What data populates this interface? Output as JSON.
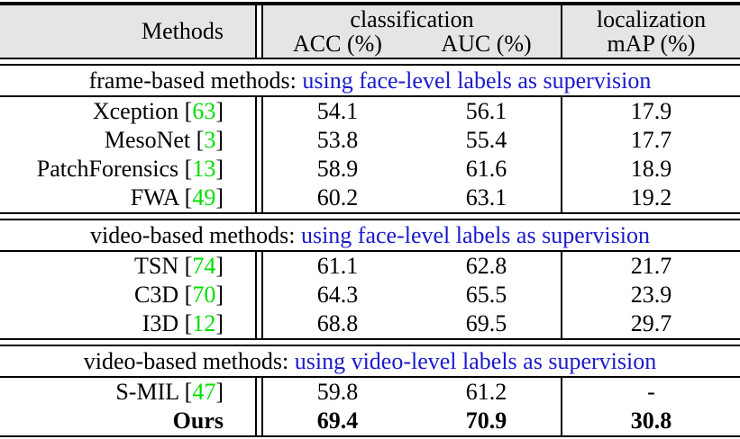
{
  "table": {
    "header": {
      "methods_label": "Methods",
      "classification_label": "classification",
      "acc_label": "ACC (%)",
      "auc_label": "AUC (%)",
      "localization_label": "localization",
      "map_label": "mAP (%)"
    },
    "cite_open": " [",
    "cite_close": "]",
    "sections": [
      {
        "title_prefix": "frame-based methods: ",
        "title_highlight": "using face-level labels as supervision",
        "rows": [
          {
            "name": "Xception",
            "cite": "63",
            "acc": "54.1",
            "auc": "56.1",
            "map": "17.9"
          },
          {
            "name": "MesoNet",
            "cite": "3",
            "acc": "53.8",
            "auc": "55.4",
            "map": "17.7"
          },
          {
            "name": "PatchForensics",
            "cite": "13",
            "acc": "58.9",
            "auc": "61.6",
            "map": "18.9"
          },
          {
            "name": "FWA",
            "cite": "49",
            "acc": "60.2",
            "auc": "63.1",
            "map": "19.2"
          }
        ]
      },
      {
        "title_prefix": "video-based methods: ",
        "title_highlight": "using face-level labels as supervision",
        "rows": [
          {
            "name": "TSN",
            "cite": "74",
            "acc": "61.1",
            "auc": "62.8",
            "map": "21.7"
          },
          {
            "name": "C3D",
            "cite": "70",
            "acc": "64.3",
            "auc": "65.5",
            "map": "23.9"
          },
          {
            "name": "I3D",
            "cite": "12",
            "acc": "68.8",
            "auc": "69.5",
            "map": "29.7"
          }
        ]
      },
      {
        "title_prefix": "video-based methods: ",
        "title_highlight": "using video-level labels as supervision",
        "rows": [
          {
            "name": "S-MIL",
            "cite": "47",
            "acc": "59.8",
            "auc": "61.2",
            "map": "-"
          },
          {
            "name": "Ours",
            "acc": "69.4",
            "auc": "70.9",
            "map": "30.8"
          }
        ]
      }
    ],
    "colors": {
      "header_bg": "#e5e5e5",
      "highlight_blue": "#1a1acc",
      "citation_green": "#00dd00",
      "rule_black": "#000000"
    }
  }
}
